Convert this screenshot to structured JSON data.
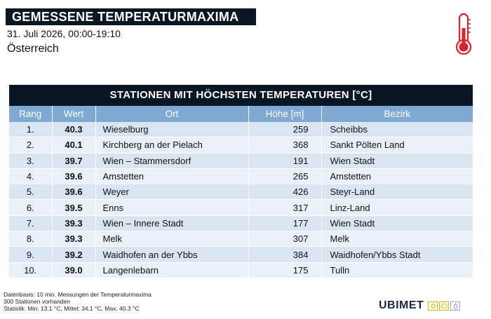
{
  "header": {
    "title": "GEMESSENE TEMPERATURMAXIMA",
    "subtitle": "31. Juli 2026, 00:00-19:10",
    "region": "Österreich",
    "icon": "thermometer-icon"
  },
  "table": {
    "title": "STATIONEN MIT HÖCHSTEN TEMPERATUREN [°C]",
    "columns": [
      "Rang",
      "Wert",
      "Ort",
      "Höhe [m]",
      "Bezirk"
    ],
    "rows": [
      {
        "rang": "1.",
        "wert": "40.3",
        "ort": "Wieselburg",
        "hoehe": "259",
        "bezirk": "Scheibbs"
      },
      {
        "rang": "2.",
        "wert": "40.1",
        "ort": "Kirchberg an der Pielach",
        "hoehe": "368",
        "bezirk": "Sankt Pölten Land"
      },
      {
        "rang": "3.",
        "wert": "39.7",
        "ort": "Wien – Stammersdorf",
        "hoehe": "191",
        "bezirk": "Wien Stadt"
      },
      {
        "rang": "4.",
        "wert": "39.6",
        "ort": "Amstetten",
        "hoehe": "265",
        "bezirk": "Amstetten"
      },
      {
        "rang": "5.",
        "wert": "39.6",
        "ort": "Weyer",
        "hoehe": "426",
        "bezirk": "Steyr-Land"
      },
      {
        "rang": "6.",
        "wert": "39.5",
        "ort": "Enns",
        "hoehe": "317",
        "bezirk": "Linz-Land"
      },
      {
        "rang": "7.",
        "wert": "39.3",
        "ort": "Wien – Innere Stadt",
        "hoehe": "177",
        "bezirk": "Wien Stadt"
      },
      {
        "rang": "8.",
        "wert": "39.3",
        "ort": "Melk",
        "hoehe": "307",
        "bezirk": "Melk"
      },
      {
        "rang": "9.",
        "wert": "39.2",
        "ort": "Waidhofen an der Ybbs",
        "hoehe": "384",
        "bezirk": "Waidhofen/Ybbs Stadt"
      },
      {
        "rang": "10.",
        "wert": "39.0",
        "ort": "Langenlebarn",
        "hoehe": "175",
        "bezirk": "Tulln"
      }
    ]
  },
  "footer": {
    "lines": [
      "Datenbasis: 10 min. Messungen der Temperaturmaxima",
      "300 Stationen vorhanden",
      "Statistik: Min: 13.1 °C, Mittel: 34.1 °C, Max: 40.3 °C"
    ]
  },
  "brand": {
    "name": "UBIMET",
    "icons": [
      "sun-icon",
      "cloud-icon",
      "snow-icon"
    ]
  },
  "colors": {
    "dark_bar": "#0b1624",
    "header_blue": "#7fa8d2",
    "row_light": "#e9f0f7",
    "row_dark": "#d9e6f2",
    "thermometer_red": "#d8242b"
  }
}
